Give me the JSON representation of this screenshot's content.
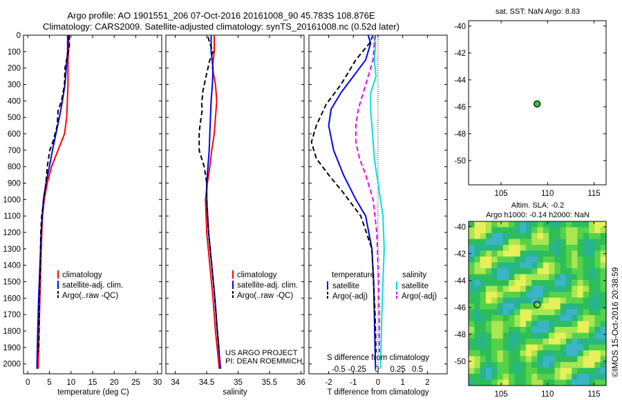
{
  "header": {
    "title1": "Argo profile: AO 1901551_206 07-Oct-2016 20161008_90 45.783S 108.876E",
    "title2": "Climatology: CARS2009. Satellite-adjusted climatology: synTS_20161008.nc (0.52d later)"
  },
  "colors": {
    "climatology": "#ff0000",
    "satellite": "#0000ee",
    "argo": "#000000",
    "sal_satellite": "#00e0e0",
    "sal_argo": "#ee00ee",
    "map_green": "#32c832"
  },
  "depth_axis": {
    "ticks": [
      0,
      100,
      200,
      300,
      400,
      500,
      600,
      700,
      800,
      900,
      1000,
      1100,
      1200,
      1300,
      1400,
      1500,
      1600,
      1700,
      1800,
      1900,
      2000
    ],
    "range": [
      0,
      2060
    ]
  },
  "chart_data": [
    {
      "type": "line",
      "id": "temperature",
      "xlabel": "temperature (deg C)",
      "xlim": [
        -1,
        31
      ],
      "xticks": [
        0,
        5,
        10,
        15,
        20,
        25,
        30
      ],
      "ylim": [
        2060,
        0
      ],
      "legend": [
        "climatology",
        "satellite-adj. clim.",
        "Argo(..raw -QC)"
      ],
      "series": [
        {
          "name": "climatology",
          "color": "#ff0000",
          "dash": "",
          "points": [
            [
              9.5,
              0
            ],
            [
              9.5,
              60
            ],
            [
              9.3,
              150
            ],
            [
              9.3,
              300
            ],
            [
              9.0,
              500
            ],
            [
              8.5,
              600
            ],
            [
              7.0,
              700
            ],
            [
              5.5,
              800
            ],
            [
              4.5,
              900
            ],
            [
              3.8,
              1000
            ],
            [
              3.4,
              1100
            ],
            [
              3.1,
              1300
            ],
            [
              2.9,
              1500
            ],
            [
              2.7,
              1700
            ],
            [
              2.5,
              1900
            ],
            [
              2.4,
              2030
            ]
          ]
        },
        {
          "name": "satellite-adj. clim.",
          "color": "#0000ee",
          "dash": "",
          "points": [
            [
              9.2,
              0
            ],
            [
              9.2,
              100
            ],
            [
              8.9,
              200
            ],
            [
              8.6,
              300
            ],
            [
              8.0,
              400
            ],
            [
              7.3,
              500
            ],
            [
              6.5,
              600
            ],
            [
              5.7,
              700
            ],
            [
              5.0,
              800
            ],
            [
              4.2,
              900
            ],
            [
              3.6,
              1000
            ],
            [
              3.1,
              1200
            ],
            [
              2.8,
              1400
            ],
            [
              2.5,
              1600
            ],
            [
              2.3,
              1800
            ],
            [
              2.1,
              2030
            ]
          ]
        },
        {
          "name": "Argo(..raw -QC)",
          "color": "#000000",
          "dash": "7,4",
          "points": [
            [
              9.6,
              0
            ],
            [
              9.6,
              80
            ],
            [
              9.2,
              120
            ],
            [
              8.6,
              200
            ],
            [
              8.5,
              300
            ],
            [
              7.8,
              400
            ],
            [
              7.0,
              460
            ],
            [
              6.8,
              550
            ],
            [
              5.8,
              650
            ],
            [
              5.1,
              700
            ],
            [
              4.5,
              800
            ],
            [
              4.2,
              900
            ],
            [
              3.7,
              1000
            ],
            [
              3.2,
              1100
            ],
            [
              3.0,
              1200
            ],
            [
              2.9,
              1400
            ],
            [
              2.7,
              1600
            ],
            [
              2.6,
              1800
            ],
            [
              2.5,
              1930
            ]
          ]
        }
      ]
    },
    {
      "type": "line",
      "id": "salinity",
      "xlabel": "salinity",
      "xlim": [
        33.85,
        36.05
      ],
      "xticks": [
        34,
        34.5,
        35,
        35.5,
        36
      ],
      "ylim": [
        2060,
        0
      ],
      "legend": [
        "climatology",
        "satellite-adj. clim.",
        "Argo(..raw -QC)"
      ],
      "series": [
        {
          "name": "climatology",
          "color": "#ff0000",
          "dash": "",
          "points": [
            [
              34.62,
              0
            ],
            [
              34.62,
              100
            ],
            [
              34.59,
              200
            ],
            [
              34.64,
              300
            ],
            [
              34.66,
              400
            ],
            [
              34.64,
              500
            ],
            [
              34.62,
              600
            ],
            [
              34.58,
              700
            ],
            [
              34.55,
              800
            ],
            [
              34.51,
              900
            ],
            [
              34.48,
              1000
            ],
            [
              34.5,
              1200
            ],
            [
              34.55,
              1400
            ],
            [
              34.6,
              1600
            ],
            [
              34.64,
              1800
            ],
            [
              34.7,
              2030
            ]
          ]
        },
        {
          "name": "satellite-adj. clim.",
          "color": "#0000ee",
          "dash": "",
          "points": [
            [
              34.57,
              0
            ],
            [
              34.57,
              100
            ],
            [
              34.6,
              200
            ],
            [
              34.59,
              300
            ],
            [
              34.57,
              400
            ],
            [
              34.56,
              500
            ],
            [
              34.55,
              600
            ],
            [
              34.54,
              700
            ],
            [
              34.52,
              800
            ],
            [
              34.5,
              900
            ],
            [
              34.5,
              1000
            ],
            [
              34.53,
              1200
            ],
            [
              34.58,
              1400
            ],
            [
              34.63,
              1600
            ],
            [
              34.67,
              1800
            ],
            [
              34.72,
              2030
            ]
          ]
        },
        {
          "name": "Argo(..raw -QC)",
          "color": "#000000",
          "dash": "7,4",
          "points": [
            [
              34.52,
              10
            ],
            [
              34.55,
              50
            ],
            [
              34.6,
              100
            ],
            [
              34.55,
              150
            ],
            [
              34.49,
              250
            ],
            [
              34.44,
              340
            ],
            [
              34.42,
              420
            ],
            [
              34.43,
              450
            ],
            [
              34.39,
              560
            ],
            [
              34.38,
              600
            ],
            [
              34.38,
              700
            ],
            [
              34.42,
              750
            ],
            [
              34.46,
              800
            ],
            [
              34.5,
              900
            ],
            [
              34.5,
              1000
            ],
            [
              34.53,
              1200
            ],
            [
              34.58,
              1400
            ],
            [
              34.63,
              1600
            ],
            [
              34.67,
              1800
            ],
            [
              34.7,
              1930
            ]
          ]
        }
      ]
    },
    {
      "type": "line",
      "id": "difference",
      "xlabel": "T difference from climatology",
      "xlabel_top": "S difference from climatology",
      "xlim": [
        -2.8,
        2.8
      ],
      "xticks": [
        -2,
        -1,
        0,
        1,
        2
      ],
      "xticks_top": [
        [
          "-0.5",
          -1.6
        ],
        [
          "-0.25",
          -0.85
        ],
        [
          "0",
          -0.05
        ],
        [
          "0.25",
          0.8
        ],
        [
          "0.5",
          1.6
        ]
      ],
      "ylim": [
        2060,
        0
      ],
      "legend_temperature": {
        "title": "temperature",
        "items": [
          "satellite",
          "Argo(-adj)"
        ]
      },
      "legend_salinity": {
        "title": "salinity",
        "items": [
          "satellite",
          "Argo(-adj)"
        ]
      },
      "series": [
        {
          "name": "temperature satellite",
          "color": "#0000ee",
          "dash": "",
          "points": [
            [
              -0.4,
              0
            ],
            [
              -0.3,
              50
            ],
            [
              -0.5,
              150
            ],
            [
              -1.0,
              250
            ],
            [
              -1.5,
              350
            ],
            [
              -1.9,
              450
            ],
            [
              -2.0,
              550
            ],
            [
              -1.8,
              700
            ],
            [
              -1.4,
              850
            ],
            [
              -0.9,
              1000
            ],
            [
              -0.5,
              1100
            ],
            [
              -0.25,
              1300
            ],
            [
              -0.18,
              1500
            ],
            [
              -0.15,
              1700
            ],
            [
              -0.1,
              2030
            ]
          ]
        },
        {
          "name": "temperature Argo(-adj)",
          "color": "#000000",
          "dash": "7,4",
          "points": [
            [
              -0.2,
              0
            ],
            [
              -0.35,
              50
            ],
            [
              -0.9,
              150
            ],
            [
              -1.5,
              300
            ],
            [
              -2.1,
              420
            ],
            [
              -2.5,
              550
            ],
            [
              -2.7,
              650
            ],
            [
              -2.5,
              750
            ],
            [
              -2.0,
              850
            ],
            [
              -1.4,
              960
            ],
            [
              -0.7,
              1100
            ],
            [
              -0.25,
              1300
            ],
            [
              -0.18,
              1500
            ],
            [
              -0.12,
              1700
            ],
            [
              -0.08,
              1930
            ]
          ]
        },
        {
          "name": "salinity satellite",
          "color": "#00e0e0",
          "dash": "",
          "points": [
            [
              -0.2,
              0
            ],
            [
              -0.1,
              50
            ],
            [
              -0.15,
              150
            ],
            [
              -0.08,
              250
            ],
            [
              -0.3,
              350
            ],
            [
              -0.3,
              450
            ],
            [
              -0.25,
              550
            ],
            [
              -0.2,
              650
            ],
            [
              -0.15,
              750
            ],
            [
              0.0,
              900
            ],
            [
              0.2,
              1100
            ],
            [
              0.25,
              1300
            ],
            [
              0.2,
              1500
            ],
            [
              0.15,
              1700
            ],
            [
              0.1,
              2030
            ]
          ]
        },
        {
          "name": "salinity Argo(-adj)",
          "color": "#ee00ee",
          "dash": "7,4",
          "points": [
            [
              -0.1,
              0
            ],
            [
              -0.15,
              50
            ],
            [
              -0.2,
              150
            ],
            [
              -0.4,
              250
            ],
            [
              -0.6,
              350
            ],
            [
              -0.8,
              450
            ],
            [
              -0.9,
              550
            ],
            [
              -0.9,
              650
            ],
            [
              -0.75,
              750
            ],
            [
              -0.5,
              850
            ],
            [
              -0.2,
              1000
            ],
            [
              -0.05,
              1200
            ],
            [
              0.02,
              1500
            ],
            [
              0.05,
              1700
            ],
            [
              0.05,
              1930
            ]
          ]
        }
      ]
    },
    {
      "type": "scatter",
      "id": "sst_map",
      "title": "sat. SST: NaN Argo: 8.83",
      "xlim": [
        101.5,
        116.3
      ],
      "ylim": [
        -51.8,
        -39.6
      ],
      "xticks": [
        105,
        110,
        115
      ],
      "yticks": [
        -40,
        -42,
        -44,
        -46,
        -48,
        -50
      ],
      "point": {
        "x": 108.876,
        "y": -45.783
      }
    },
    {
      "type": "heatmap",
      "id": "sla_map",
      "title1": "Altim. SLA: -0.2",
      "title2": "Argo h1000: -0.14  h2000: NaN",
      "xlim": [
        101.5,
        116.3
      ],
      "ylim": [
        -51.8,
        -39.6
      ],
      "xticks": [
        105,
        110,
        115
      ],
      "yticks": [
        -40,
        -42,
        -44,
        -46,
        -48,
        -50
      ],
      "point": {
        "x": 108.876,
        "y": -45.783
      }
    }
  ],
  "notes": {
    "line1": "US ARGO PROJECT",
    "line2": "PI: DEAN ROEMMICH"
  },
  "credit": "©IMOS 15-Oct-2016 20:38:59"
}
